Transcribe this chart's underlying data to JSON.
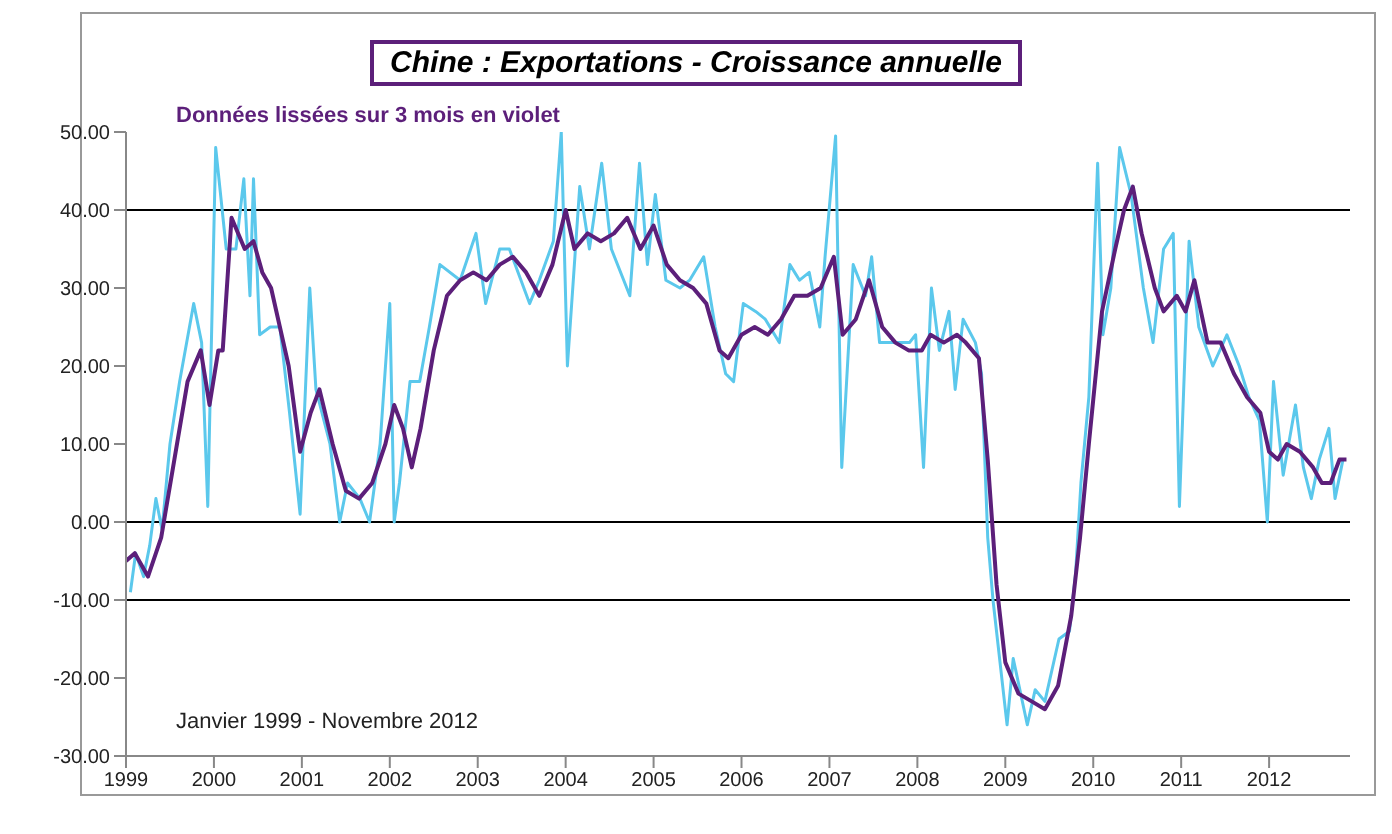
{
  "chart_data": {
    "type": "line",
    "title": "Chine : Exportations  - Croissance annuelle",
    "annotations": [
      "Données lissées sur 3 mois en violet",
      "Janvier 1999 - Novembre  2012"
    ],
    "xlim": [
      1999,
      2012.92
    ],
    "xticks": [
      1999,
      2000,
      2001,
      2002,
      2003,
      2004,
      2005,
      2006,
      2007,
      2008,
      2009,
      2010,
      2011,
      2012
    ],
    "ylim": [
      -30,
      50
    ],
    "yticks": [
      {
        "value": -30,
        "label": "-30.00"
      },
      {
        "value": -20,
        "label": "-20.00"
      },
      {
        "value": -10,
        "label": "-10.00"
      },
      {
        "value": 0,
        "label": "0.00"
      },
      {
        "value": 10,
        "label": "10.00"
      },
      {
        "value": 20,
        "label": "20.00"
      },
      {
        "value": 30,
        "label": "30.00"
      },
      {
        "value": 40,
        "label": "40.00"
      },
      {
        "value": 50,
        "label": "50.00"
      }
    ],
    "ref_lines": [
      {
        "axis": "y",
        "value": 40,
        "color": "#000000"
      },
      {
        "axis": "y",
        "value": 0,
        "color": "#000000"
      },
      {
        "axis": "y",
        "value": -10,
        "color": "#000000"
      }
    ],
    "grid": false,
    "legend": false,
    "marker": "none",
    "line_style": "solid",
    "series": [
      {
        "color": "#5bc8ec",
        "x": [
          1999.05,
          1999.11,
          1999.2,
          1999.27,
          1999.34,
          1999.41,
          1999.5,
          1999.61,
          1999.77,
          1999.86,
          1999.93,
          2000.02,
          2000.14,
          2000.25,
          2000.34,
          2000.41,
          2000.45,
          2000.52,
          2000.64,
          2000.75,
          2000.86,
          2000.98,
          2001.09,
          2001.16,
          2001.32,
          2001.43,
          2001.52,
          2001.66,
          2001.77,
          2001.89,
          2002.0,
          2002.05,
          2002.11,
          2002.23,
          2002.34,
          2002.45,
          2002.57,
          2002.8,
          2002.98,
          2003.09,
          2003.25,
          2003.36,
          2003.59,
          2003.7,
          2003.86,
          2003.95,
          2004.02,
          2004.16,
          2004.27,
          2004.41,
          2004.52,
          2004.73,
          2004.84,
          2004.93,
          2005.02,
          2005.14,
          2005.3,
          2005.41,
          2005.57,
          2005.7,
          2005.82,
          2005.91,
          2006.02,
          2006.16,
          2006.27,
          2006.43,
          2006.55,
          2006.66,
          2006.77,
          2006.89,
          2006.95,
          2007.07,
          2007.14,
          2007.27,
          2007.41,
          2007.48,
          2007.57,
          2007.73,
          2007.91,
          2007.98,
          2008.07,
          2008.16,
          2008.25,
          2008.36,
          2008.43,
          2008.52,
          2008.66,
          2008.73,
          2008.8,
          2008.86,
          2009.02,
          2009.09,
          2009.25,
          2009.34,
          2009.45,
          2009.61,
          2009.73,
          2009.8,
          2009.86,
          2009.95,
          2010.05,
          2010.11,
          2010.2,
          2010.3,
          2010.43,
          2010.57,
          2010.68,
          2010.8,
          2010.91,
          2010.98,
          2011.09,
          2011.2,
          2011.36,
          2011.52,
          2011.66,
          2011.77,
          2011.89,
          2011.98,
          2012.05,
          2012.16,
          2012.3,
          2012.39,
          2012.48,
          2012.57,
          2012.68,
          2012.75,
          2012.84
        ],
        "values": [
          -9,
          -4,
          -7,
          -3,
          3,
          -1,
          10,
          18,
          28,
          23,
          2,
          48,
          35,
          35,
          44,
          29,
          44,
          24,
          25,
          25,
          14,
          1,
          30,
          17,
          10,
          0,
          5,
          3,
          0,
          10,
          28,
          0,
          5,
          18,
          18,
          25,
          33,
          31,
          37,
          28,
          35,
          35,
          28,
          31,
          36,
          50,
          20,
          43,
          35,
          46,
          35,
          29,
          46,
          33,
          42,
          31,
          30,
          31,
          34,
          25,
          19,
          18,
          28,
          27,
          26,
          23,
          33,
          31,
          32,
          25,
          34,
          49.5,
          7,
          33,
          29,
          34,
          23,
          23,
          23,
          24,
          7,
          30,
          22,
          27,
          17,
          26,
          23,
          19,
          -2,
          -10,
          -26,
          -17.5,
          -26,
          -21.5,
          -23,
          -15,
          -14,
          -6.5,
          5,
          16,
          46,
          24,
          30,
          48,
          42,
          30,
          23,
          35,
          37,
          2,
          36,
          25,
          20,
          24,
          20,
          16,
          13,
          0,
          18,
          6,
          15,
          7,
          3,
          8,
          12,
          3,
          8
        ]
      },
      {
        "color": "#5c1f7a",
        "x": [
          1999.0,
          1999.1,
          1999.25,
          1999.4,
          1999.55,
          1999.7,
          1999.85,
          1999.95,
          2000.05,
          2000.1,
          2000.2,
          2000.35,
          2000.45,
          2000.55,
          2000.65,
          2000.75,
          2000.85,
          2000.98,
          2001.1,
          2001.2,
          2001.35,
          2001.5,
          2001.65,
          2001.8,
          2001.95,
          2002.05,
          2002.15,
          2002.25,
          2002.35,
          2002.5,
          2002.65,
          2002.8,
          2002.95,
          2003.1,
          2003.25,
          2003.4,
          2003.55,
          2003.7,
          2003.85,
          2004.0,
          2004.1,
          2004.25,
          2004.4,
          2004.55,
          2004.7,
          2004.85,
          2005.0,
          2005.15,
          2005.3,
          2005.45,
          2005.6,
          2005.75,
          2005.85,
          2006.0,
          2006.15,
          2006.3,
          2006.45,
          2006.6,
          2006.75,
          2006.9,
          2007.05,
          2007.15,
          2007.3,
          2007.45,
          2007.6,
          2007.75,
          2007.9,
          2008.05,
          2008.15,
          2008.3,
          2008.45,
          2008.55,
          2008.7,
          2008.8,
          2008.9,
          2009.0,
          2009.15,
          2009.3,
          2009.45,
          2009.6,
          2009.75,
          2009.85,
          2009.95,
          2010.1,
          2010.25,
          2010.35,
          2010.45,
          2010.55,
          2010.7,
          2010.8,
          2010.95,
          2011.05,
          2011.15,
          2011.3,
          2011.45,
          2011.6,
          2011.75,
          2011.9,
          2012.0,
          2012.1,
          2012.2,
          2012.35,
          2012.5,
          2012.6,
          2012.7,
          2012.8,
          2012.88
        ],
        "values": [
          -5,
          -4,
          -7,
          -2,
          8,
          18,
          22,
          15,
          22,
          22,
          39,
          35,
          36,
          32,
          30,
          25,
          20,
          9,
          14,
          17,
          10,
          4,
          3,
          5,
          10,
          15,
          12,
          7,
          12,
          22,
          29,
          31,
          32,
          31,
          33,
          34,
          32,
          29,
          33,
          40,
          35,
          37,
          36,
          37,
          39,
          35,
          38,
          33,
          31,
          30,
          28,
          22,
          21,
          24,
          25,
          24,
          26,
          29,
          29,
          30,
          34,
          24,
          26,
          31,
          25,
          23,
          22,
          22,
          24,
          23,
          24,
          23,
          21,
          8,
          -8,
          -18,
          -22,
          -23,
          -24,
          -21,
          -12,
          -2,
          10,
          27,
          35,
          40,
          43,
          37,
          30,
          27,
          29,
          27,
          31,
          23,
          23,
          19,
          16,
          14,
          9,
          8,
          10,
          9,
          7,
          5,
          5,
          8,
          8
        ]
      }
    ]
  }
}
